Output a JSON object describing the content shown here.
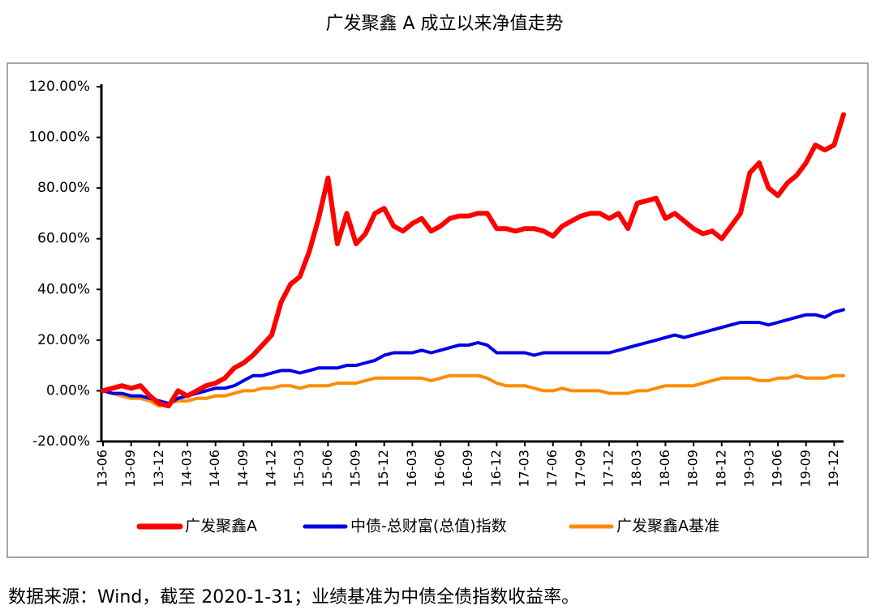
{
  "chart_data": {
    "type": "line",
    "title": "广发聚鑫 A 成立以来净值走势",
    "caption": "数据来源：Wind，截至 2020-1-31；业绩基准为中债全债指数收益率。",
    "categories": [
      "13-06",
      null,
      null,
      "13-09",
      null,
      null,
      "13-12",
      null,
      null,
      "14-03",
      null,
      null,
      "14-06",
      null,
      null,
      "14-09",
      null,
      null,
      "14-12",
      null,
      null,
      "15-03",
      null,
      null,
      "15-06",
      null,
      null,
      "15-09",
      null,
      null,
      "15-12",
      null,
      null,
      "16-03",
      null,
      null,
      "16-06",
      null,
      null,
      "16-09",
      null,
      null,
      "16-12",
      null,
      null,
      "17-03",
      null,
      null,
      "17-06",
      null,
      null,
      "17-09",
      null,
      null,
      "17-12",
      null,
      null,
      "18-03",
      null,
      null,
      "18-06",
      null,
      null,
      "18-09",
      null,
      null,
      "18-12",
      null,
      null,
      "19-03",
      null,
      null,
      "19-06",
      null,
      null,
      "19-09",
      null,
      null,
      "19-12",
      null
    ],
    "series": [
      {
        "name": "广发聚鑫A",
        "color": "#ff0000",
        "width": 6,
        "values": [
          0,
          1,
          2,
          1,
          2,
          -2,
          -5,
          -6,
          0,
          -2,
          0,
          2,
          3,
          5,
          9,
          11,
          14,
          18,
          22,
          35,
          42,
          45,
          55,
          68,
          84,
          58,
          70,
          58,
          62,
          70,
          72,
          65,
          63,
          66,
          68,
          63,
          65,
          68,
          69,
          69,
          70,
          70,
          64,
          64,
          63,
          64,
          64,
          63,
          61,
          65,
          67,
          69,
          70,
          70,
          68,
          70,
          64,
          74,
          75,
          76,
          68,
          70,
          67,
          64,
          62,
          63,
          60,
          65,
          70,
          86,
          90,
          80,
          77,
          82,
          85,
          90,
          97,
          95,
          97,
          109
        ]
      },
      {
        "name": "中债-总财富(总值)指数",
        "color": "#0000e6",
        "width": 4,
        "values": [
          0,
          -1,
          -1,
          -2,
          -2,
          -3,
          -4,
          -5,
          -3,
          -2,
          -1,
          0,
          1,
          1,
          2,
          4,
          6,
          6,
          7,
          8,
          8,
          7,
          8,
          9,
          9,
          9,
          10,
          10,
          11,
          12,
          14,
          15,
          15,
          15,
          16,
          15,
          16,
          17,
          18,
          18,
          19,
          18,
          15,
          15,
          15,
          15,
          14,
          15,
          15,
          15,
          15,
          15,
          15,
          15,
          15,
          16,
          17,
          18,
          19,
          20,
          21,
          22,
          21,
          22,
          23,
          24,
          25,
          26,
          27,
          27,
          27,
          26,
          27,
          28,
          29,
          30,
          30,
          29,
          31,
          32
        ]
      },
      {
        "name": "广发聚鑫A基准",
        "color": "#ff8c00",
        "width": 4,
        "values": [
          0,
          -1,
          -2,
          -3,
          -3,
          -4,
          -6,
          -5,
          -4,
          -4,
          -3,
          -3,
          -2,
          -2,
          -1,
          0,
          0,
          1,
          1,
          2,
          2,
          1,
          2,
          2,
          2,
          3,
          3,
          3,
          4,
          5,
          5,
          5,
          5,
          5,
          5,
          4,
          5,
          6,
          6,
          6,
          6,
          5,
          3,
          2,
          2,
          2,
          1,
          0,
          0,
          1,
          0,
          0,
          0,
          0,
          -1,
          -1,
          -1,
          0,
          0,
          1,
          2,
          2,
          2,
          2,
          3,
          4,
          5,
          5,
          5,
          5,
          4,
          4,
          5,
          5,
          6,
          5,
          5,
          5,
          6,
          6
        ]
      }
    ],
    "ylim": [
      -20,
      120
    ],
    "yticks": [
      {
        "value": -20,
        "label": "-20.00%"
      },
      {
        "value": 0,
        "label": "0.00%"
      },
      {
        "value": 20,
        "label": "20.00%"
      },
      {
        "value": 40,
        "label": "40.00%"
      },
      {
        "value": 60,
        "label": "60.00%"
      },
      {
        "value": 80,
        "label": "80.00%"
      },
      {
        "value": 100,
        "label": "100.00%"
      },
      {
        "value": 120,
        "label": "120.00%"
      }
    ],
    "grid": false,
    "legend": "bottom"
  }
}
